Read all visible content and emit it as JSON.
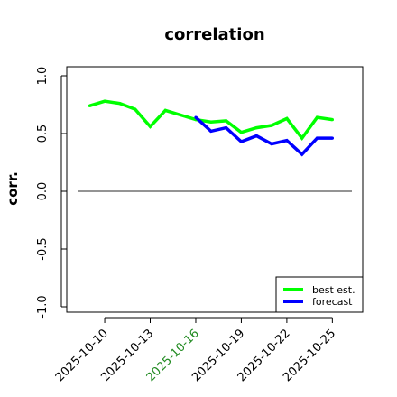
{
  "chart_data": {
    "type": "line",
    "title": "correlation",
    "xlabel": "",
    "ylabel": "corr.",
    "ylim": [
      -1.0,
      1.0
    ],
    "yticks": [
      "-1.0",
      "-0.5",
      "0.0",
      "0.5",
      "1.0"
    ],
    "xlim": [
      "2025-10-07T12",
      "2025-10-27"
    ],
    "x_tick_labels": [
      "2025-10-10",
      "2025-10-13",
      "2025-10-16",
      "2025-10-19",
      "2025-10-22",
      "2025-10-25"
    ],
    "x_tick_colors": [
      "#000000",
      "#000000",
      "#228B22",
      "#000000",
      "#000000",
      "#000000"
    ],
    "reference_line": 0.0,
    "reference_line_color": "#555555",
    "legend_position": "bottom-right",
    "series": [
      {
        "name": "best est.",
        "color": "#00ff00",
        "x": [
          "2025-10-09",
          "2025-10-10",
          "2025-10-11",
          "2025-10-12",
          "2025-10-13",
          "2025-10-14",
          "2025-10-15",
          "2025-10-16",
          "2025-10-17",
          "2025-10-18",
          "2025-10-19",
          "2025-10-20",
          "2025-10-21",
          "2025-10-22",
          "2025-10-23",
          "2025-10-24",
          "2025-10-25"
        ],
        "values": [
          0.74,
          0.78,
          0.76,
          0.71,
          0.56,
          0.7,
          0.66,
          0.62,
          0.6,
          0.61,
          0.51,
          0.55,
          0.57,
          0.63,
          0.46,
          0.64,
          0.62
        ]
      },
      {
        "name": "forecast",
        "color": "#0000ff",
        "x": [
          "2025-10-16",
          "2025-10-17",
          "2025-10-18",
          "2025-10-19",
          "2025-10-20",
          "2025-10-21",
          "2025-10-22",
          "2025-10-23",
          "2025-10-24",
          "2025-10-25"
        ],
        "values": [
          0.64,
          0.52,
          0.55,
          0.43,
          0.48,
          0.41,
          0.44,
          0.32,
          0.46,
          0.46
        ]
      }
    ]
  }
}
